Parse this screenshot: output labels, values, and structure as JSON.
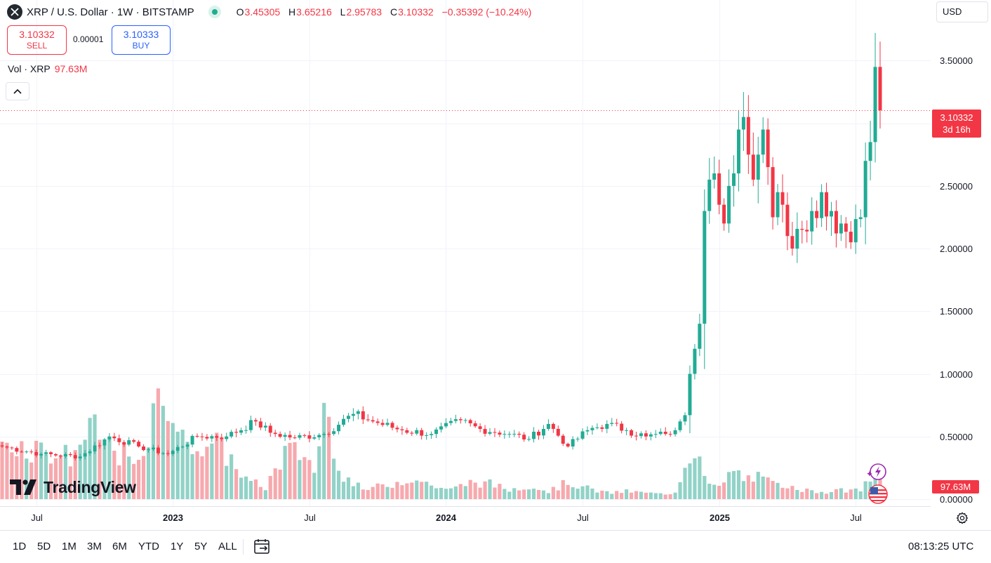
{
  "header": {
    "symbol_title": "XRP / U.S. Dollar · 1W · BITSTAMP",
    "ohlc": [
      {
        "key": "O",
        "value": "3.45305"
      },
      {
        "key": "H",
        "value": "3.65216"
      },
      {
        "key": "L",
        "value": "2.95783"
      },
      {
        "key": "C",
        "value": "3.10332"
      }
    ],
    "change": "−0.35392 (−10.24%)",
    "currency": "USD"
  },
  "trade": {
    "sell_price": "3.10332",
    "sell_label": "SELL",
    "spread": "0.00001",
    "buy_price": "3.10333",
    "buy_label": "BUY"
  },
  "volume_legend": {
    "label": "Vol · XRP",
    "value": "97.63M"
  },
  "price_tag": {
    "price": "3.10332",
    "countdown": "3d 16h"
  },
  "volume_tag": "97.63M",
  "watermark": "TradingView",
  "timeframes": [
    "1D",
    "5D",
    "1M",
    "3M",
    "6M",
    "YTD",
    "1Y",
    "5Y",
    "ALL"
  ],
  "clock": "08:13:25 UTC",
  "colors": {
    "up": "#22ab94",
    "down": "#f23645",
    "vol_up": "#92d2c7",
    "vol_down": "#f6a9ae",
    "grid": "#f0f3fa",
    "buy": "#2962ff"
  },
  "icons": {
    "logo": "xrp-logo-icon",
    "collapse": "chevron-up-icon",
    "settings": "gear-icon",
    "range": "calendar-range-icon",
    "events": [
      "lightning-event-icon",
      "us-flag-icon"
    ]
  },
  "chart_data": {
    "type": "candlestick",
    "interval": "1W",
    "price_axis": {
      "range": [
        0,
        3.9
      ],
      "ticks": [
        "3.50000",
        "3.00000",
        "2.50000",
        "2.00000",
        "1.50000",
        "1.00000",
        "0.50000",
        "0.00000"
      ],
      "tick_values": [
        3.5,
        3.0,
        2.5,
        2.0,
        1.5,
        1.0,
        0.5,
        0.0
      ]
    },
    "time_axis": {
      "labels": [
        "Jul",
        "2023",
        "Jul",
        "2024",
        "Jul",
        "2025",
        "Jul"
      ],
      "bold": [
        false,
        true,
        false,
        true,
        false,
        true,
        false
      ]
    },
    "last_price": 3.10332,
    "grid": true,
    "anchors": [
      [
        0,
        0.42
      ],
      [
        8,
        0.36
      ],
      [
        16,
        0.34
      ],
      [
        22,
        0.5
      ],
      [
        28,
        0.42
      ],
      [
        34,
        0.36
      ],
      [
        40,
        0.5
      ],
      [
        46,
        0.5
      ],
      [
        52,
        0.62
      ],
      [
        55,
        0.53
      ],
      [
        60,
        0.49
      ],
      [
        66,
        0.52
      ],
      [
        72,
        0.68
      ],
      [
        76,
        0.62
      ],
      [
        82,
        0.55
      ],
      [
        88,
        0.52
      ],
      [
        94,
        0.63
      ],
      [
        98,
        0.56
      ],
      [
        104,
        0.52
      ],
      [
        108,
        0.48
      ],
      [
        112,
        0.6
      ],
      [
        116,
        0.42
      ],
      [
        120,
        0.55
      ],
      [
        124,
        0.6
      ],
      [
        128,
        0.55
      ],
      [
        132,
        0.5
      ],
      [
        136,
        0.52
      ],
      [
        138,
        0.55
      ],
      [
        139,
        0.62
      ],
      [
        140,
        0.67
      ],
      [
        141,
        1.0
      ],
      [
        142,
        1.2
      ],
      [
        143,
        1.4
      ],
      [
        144,
        2.3
      ],
      [
        145,
        2.55
      ],
      [
        146,
        2.6
      ],
      [
        147,
        2.35
      ],
      [
        148,
        2.2
      ],
      [
        149,
        2.5
      ],
      [
        150,
        2.6
      ],
      [
        151,
        2.95
      ],
      [
        152,
        3.05
      ],
      [
        153,
        2.75
      ],
      [
        154,
        2.55
      ],
      [
        155,
        2.75
      ],
      [
        156,
        2.95
      ],
      [
        157,
        2.65
      ],
      [
        158,
        2.25
      ],
      [
        159,
        2.45
      ],
      [
        160,
        2.35
      ],
      [
        161,
        2.1
      ],
      [
        162,
        2.0
      ],
      [
        164,
        2.15
      ],
      [
        166,
        2.3
      ],
      [
        168,
        2.45
      ],
      [
        170,
        2.3
      ],
      [
        172,
        2.2
      ],
      [
        174,
        2.05
      ],
      [
        176,
        2.25
      ],
      [
        177,
        2.7
      ],
      [
        178,
        2.85
      ],
      [
        179,
        3.45
      ],
      [
        180,
        3.10332
      ]
    ],
    "volume_axis": {
      "range": [
        0,
        1.65
      ]
    },
    "volume_anchors": [
      [
        0,
        0.75
      ],
      [
        8,
        0.65
      ],
      [
        14,
        0.55
      ],
      [
        18,
        0.9
      ],
      [
        22,
        0.7
      ],
      [
        28,
        0.4
      ],
      [
        32,
        1.2
      ],
      [
        34,
        1.35
      ],
      [
        38,
        0.6
      ],
      [
        40,
        0.8
      ],
      [
        44,
        0.7
      ],
      [
        48,
        0.45
      ],
      [
        50,
        0.25
      ],
      [
        54,
        0.15
      ],
      [
        58,
        0.6
      ],
      [
        62,
        0.6
      ],
      [
        64,
        0.35
      ],
      [
        66,
        1.2
      ],
      [
        70,
        0.3
      ],
      [
        74,
        0.12
      ],
      [
        80,
        0.2
      ],
      [
        84,
        0.28
      ],
      [
        88,
        0.18
      ],
      [
        92,
        0.12
      ],
      [
        96,
        0.22
      ],
      [
        100,
        0.2
      ],
      [
        104,
        0.12
      ],
      [
        108,
        0.18
      ],
      [
        112,
        0.1
      ],
      [
        116,
        0.22
      ],
      [
        120,
        0.14
      ],
      [
        124,
        0.08
      ],
      [
        128,
        0.1
      ],
      [
        132,
        0.08
      ],
      [
        136,
        0.06
      ],
      [
        138,
        0.1
      ],
      [
        140,
        0.45
      ],
      [
        142,
        0.7
      ],
      [
        143,
        0.55
      ],
      [
        144,
        0.25
      ],
      [
        146,
        0.15
      ],
      [
        148,
        0.2
      ],
      [
        150,
        0.4
      ],
      [
        152,
        0.25
      ],
      [
        154,
        0.3
      ],
      [
        156,
        0.25
      ],
      [
        158,
        0.2
      ],
      [
        160,
        0.15
      ],
      [
        162,
        0.22
      ],
      [
        164,
        0.12
      ],
      [
        166,
        0.1
      ],
      [
        170,
        0.1
      ],
      [
        174,
        0.12
      ],
      [
        176,
        0.1
      ],
      [
        178,
        0.3
      ],
      [
        180,
        0.25
      ]
    ]
  }
}
